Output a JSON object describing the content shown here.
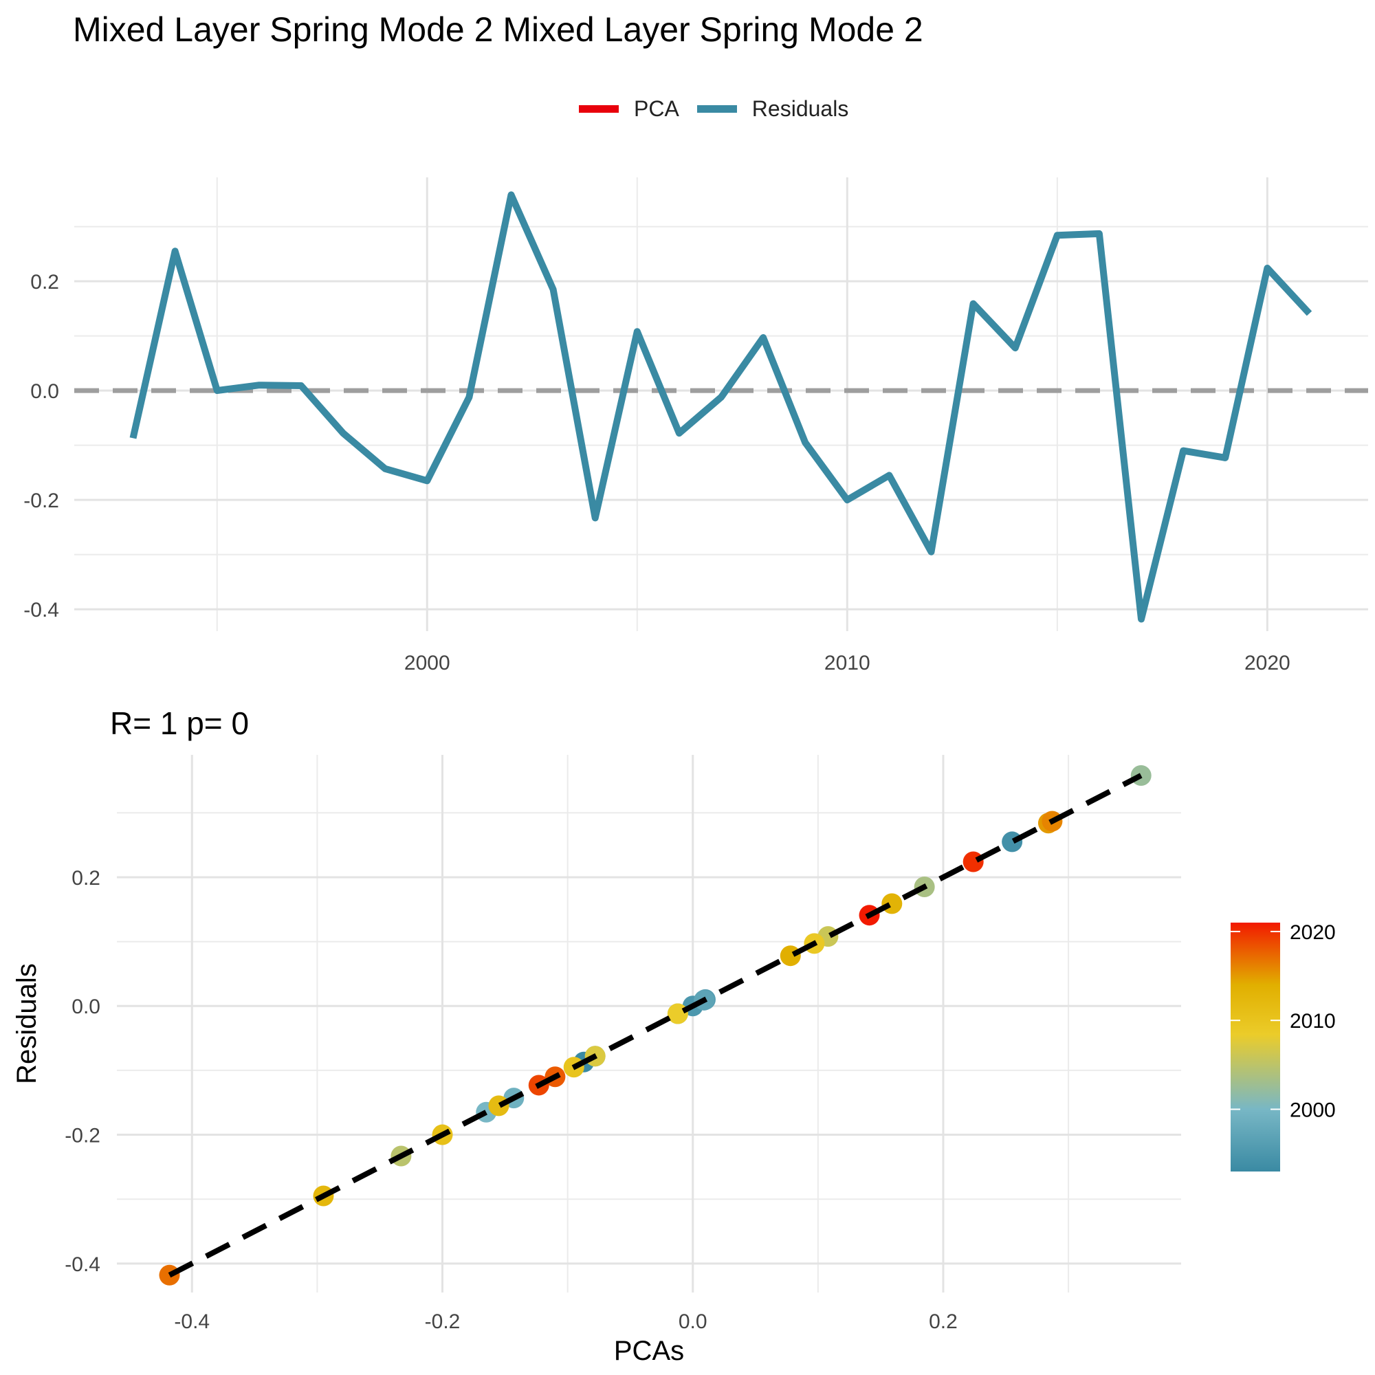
{
  "title": "Mixed Layer Spring Mode 2 Mixed Layer Spring Mode 2",
  "legend": {
    "items": [
      {
        "label": "PCA",
        "color": "#e8000b"
      },
      {
        "label": "Residuals",
        "color": "#3a8aa3"
      }
    ]
  },
  "chart_data": [
    {
      "type": "line",
      "title": "",
      "xlabel": "",
      "ylabel": "",
      "xlim": [
        1991.6,
        2022.4
      ],
      "ylim": [
        -0.44,
        0.39
      ],
      "x_ticks": [
        2000,
        2010,
        2020
      ],
      "y_ticks": [
        -0.4,
        -0.2,
        0.0,
        0.2
      ],
      "y_tick_labels": [
        "-0.4",
        "-0.2",
        "0.0",
        "0.2"
      ],
      "x_tick_labels": [
        "2000",
        "2010",
        "2020"
      ],
      "reference_line": {
        "y": 0.0,
        "style": "dashed",
        "color": "#9e9e9e"
      },
      "grid": true,
      "legend_position": "top",
      "series": [
        {
          "name": "Residuals",
          "color": "#3a8aa3",
          "x": [
            1993,
            1994,
            1995,
            1996,
            1997,
            1998,
            1999,
            2000,
            2001,
            2002,
            2003,
            2004,
            2005,
            2006,
            2007,
            2008,
            2009,
            2010,
            2011,
            2012,
            2013,
            2014,
            2015,
            2016,
            2017,
            2018,
            2019,
            2020,
            2021
          ],
          "values": [
            -0.087,
            0.255,
            0.0,
            0.01,
            0.009,
            -0.078,
            -0.143,
            -0.165,
            -0.012,
            0.358,
            0.185,
            -0.233,
            0.108,
            -0.078,
            -0.012,
            0.097,
            -0.095,
            -0.2,
            -0.155,
            -0.295,
            0.159,
            0.078,
            0.284,
            0.287,
            -0.418,
            -0.11,
            -0.123,
            0.224,
            0.141
          ]
        }
      ]
    },
    {
      "type": "scatter",
      "title": "R= 1  p= 0",
      "xlabel": "PCAs",
      "ylabel": "Residuals",
      "xlim": [
        -0.46,
        0.39
      ],
      "ylim": [
        -0.445,
        0.39
      ],
      "x_ticks": [
        -0.4,
        -0.2,
        0.0,
        0.2
      ],
      "x_tick_labels": [
        "-0.4",
        "-0.2",
        "0.0",
        "0.2"
      ],
      "y_ticks": [
        -0.4,
        -0.2,
        0.0,
        0.2
      ],
      "y_tick_labels": [
        "-0.4",
        "-0.2",
        "0.0",
        "0.2"
      ],
      "fit_line": {
        "from": [
          -0.418,
          -0.418
        ],
        "to": [
          0.358,
          0.358
        ],
        "style": "dashed",
        "color": "#000000"
      },
      "grid": true,
      "colorbar": {
        "position": "right",
        "min": 1993,
        "max": 2021,
        "ticks": [
          2000,
          2010,
          2020
        ],
        "tick_labels": [
          "2000",
          "2010",
          "2020"
        ],
        "stops": [
          "#3a8aa3",
          "#78b7c5",
          "#ebcc2a",
          "#e1af00",
          "#f21a00"
        ]
      },
      "points": [
        {
          "year": 1993,
          "x": -0.087,
          "y": -0.087
        },
        {
          "year": 1994,
          "x": 0.255,
          "y": 0.255
        },
        {
          "year": 1995,
          "x": 0.0,
          "y": 0.0
        },
        {
          "year": 1996,
          "x": 0.01,
          "y": 0.01
        },
        {
          "year": 1997,
          "x": 0.009,
          "y": 0.009
        },
        {
          "year": 1998,
          "x": -0.078,
          "y": -0.078
        },
        {
          "year": 1999,
          "x": -0.143,
          "y": -0.143
        },
        {
          "year": 2000,
          "x": -0.165,
          "y": -0.165
        },
        {
          "year": 2001,
          "x": -0.012,
          "y": -0.012
        },
        {
          "year": 2002,
          "x": 0.358,
          "y": 0.358
        },
        {
          "year": 2003,
          "x": 0.185,
          "y": 0.185
        },
        {
          "year": 2004,
          "x": -0.233,
          "y": -0.233
        },
        {
          "year": 2005,
          "x": 0.108,
          "y": 0.108
        },
        {
          "year": 2006,
          "x": -0.078,
          "y": -0.078
        },
        {
          "year": 2007,
          "x": -0.012,
          "y": -0.012
        },
        {
          "year": 2008,
          "x": 0.097,
          "y": 0.097
        },
        {
          "year": 2009,
          "x": -0.095,
          "y": -0.095
        },
        {
          "year": 2010,
          "x": -0.2,
          "y": -0.2
        },
        {
          "year": 2011,
          "x": -0.155,
          "y": -0.155
        },
        {
          "year": 2012,
          "x": -0.295,
          "y": -0.295
        },
        {
          "year": 2013,
          "x": 0.159,
          "y": 0.159
        },
        {
          "year": 2014,
          "x": 0.078,
          "y": 0.078
        },
        {
          "year": 2015,
          "x": 0.284,
          "y": 0.284
        },
        {
          "year": 2016,
          "x": 0.287,
          "y": 0.287
        },
        {
          "year": 2017,
          "x": -0.418,
          "y": -0.418
        },
        {
          "year": 2018,
          "x": -0.11,
          "y": -0.11
        },
        {
          "year": 2019,
          "x": -0.123,
          "y": -0.123
        },
        {
          "year": 2020,
          "x": 0.224,
          "y": 0.224
        },
        {
          "year": 2021,
          "x": 0.141,
          "y": 0.141
        }
      ]
    }
  ]
}
